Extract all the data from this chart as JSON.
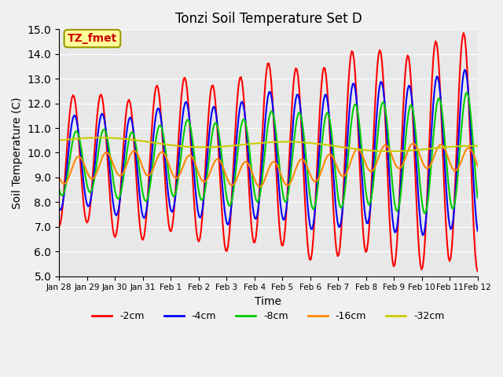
{
  "title": "Tonzi Soil Temperature Set D",
  "xlabel": "Time",
  "ylabel": "Soil Temperature (C)",
  "ylim": [
    5.0,
    15.0
  ],
  "yticks": [
    5.0,
    6.0,
    7.0,
    8.0,
    9.0,
    10.0,
    11.0,
    12.0,
    13.0,
    14.0,
    15.0
  ],
  "annotation_text": "TZ_fmet",
  "annotation_color": "#cc0000",
  "annotation_bg": "#ffff99",
  "annotation_border": "#999900",
  "legend_entries": [
    "-2cm",
    "-4cm",
    "-8cm",
    "-16cm",
    "-32cm"
  ],
  "line_colors": [
    "#ff0000",
    "#0000ff",
    "#00cc00",
    "#ff8800",
    "#cccc00"
  ],
  "line_widths": [
    1.5,
    1.5,
    1.5,
    1.5,
    1.5
  ],
  "n_points": 360,
  "start_day": 0,
  "end_day": 15.0,
  "tick_days": [
    0,
    1,
    2,
    3,
    4,
    5,
    6,
    7,
    8,
    9,
    10,
    11,
    12,
    13,
    14,
    15
  ],
  "tick_labels": [
    "Jan 28",
    "Jan 29",
    "Jan 30",
    "Jan 31",
    "Feb 1",
    "Feb 2",
    "Feb 3",
    "Feb 4",
    "Feb 5",
    "Feb 6",
    "Feb 7",
    "Feb 8",
    "Feb 9",
    "Feb 10",
    "Feb 11",
    "Feb 12"
  ]
}
